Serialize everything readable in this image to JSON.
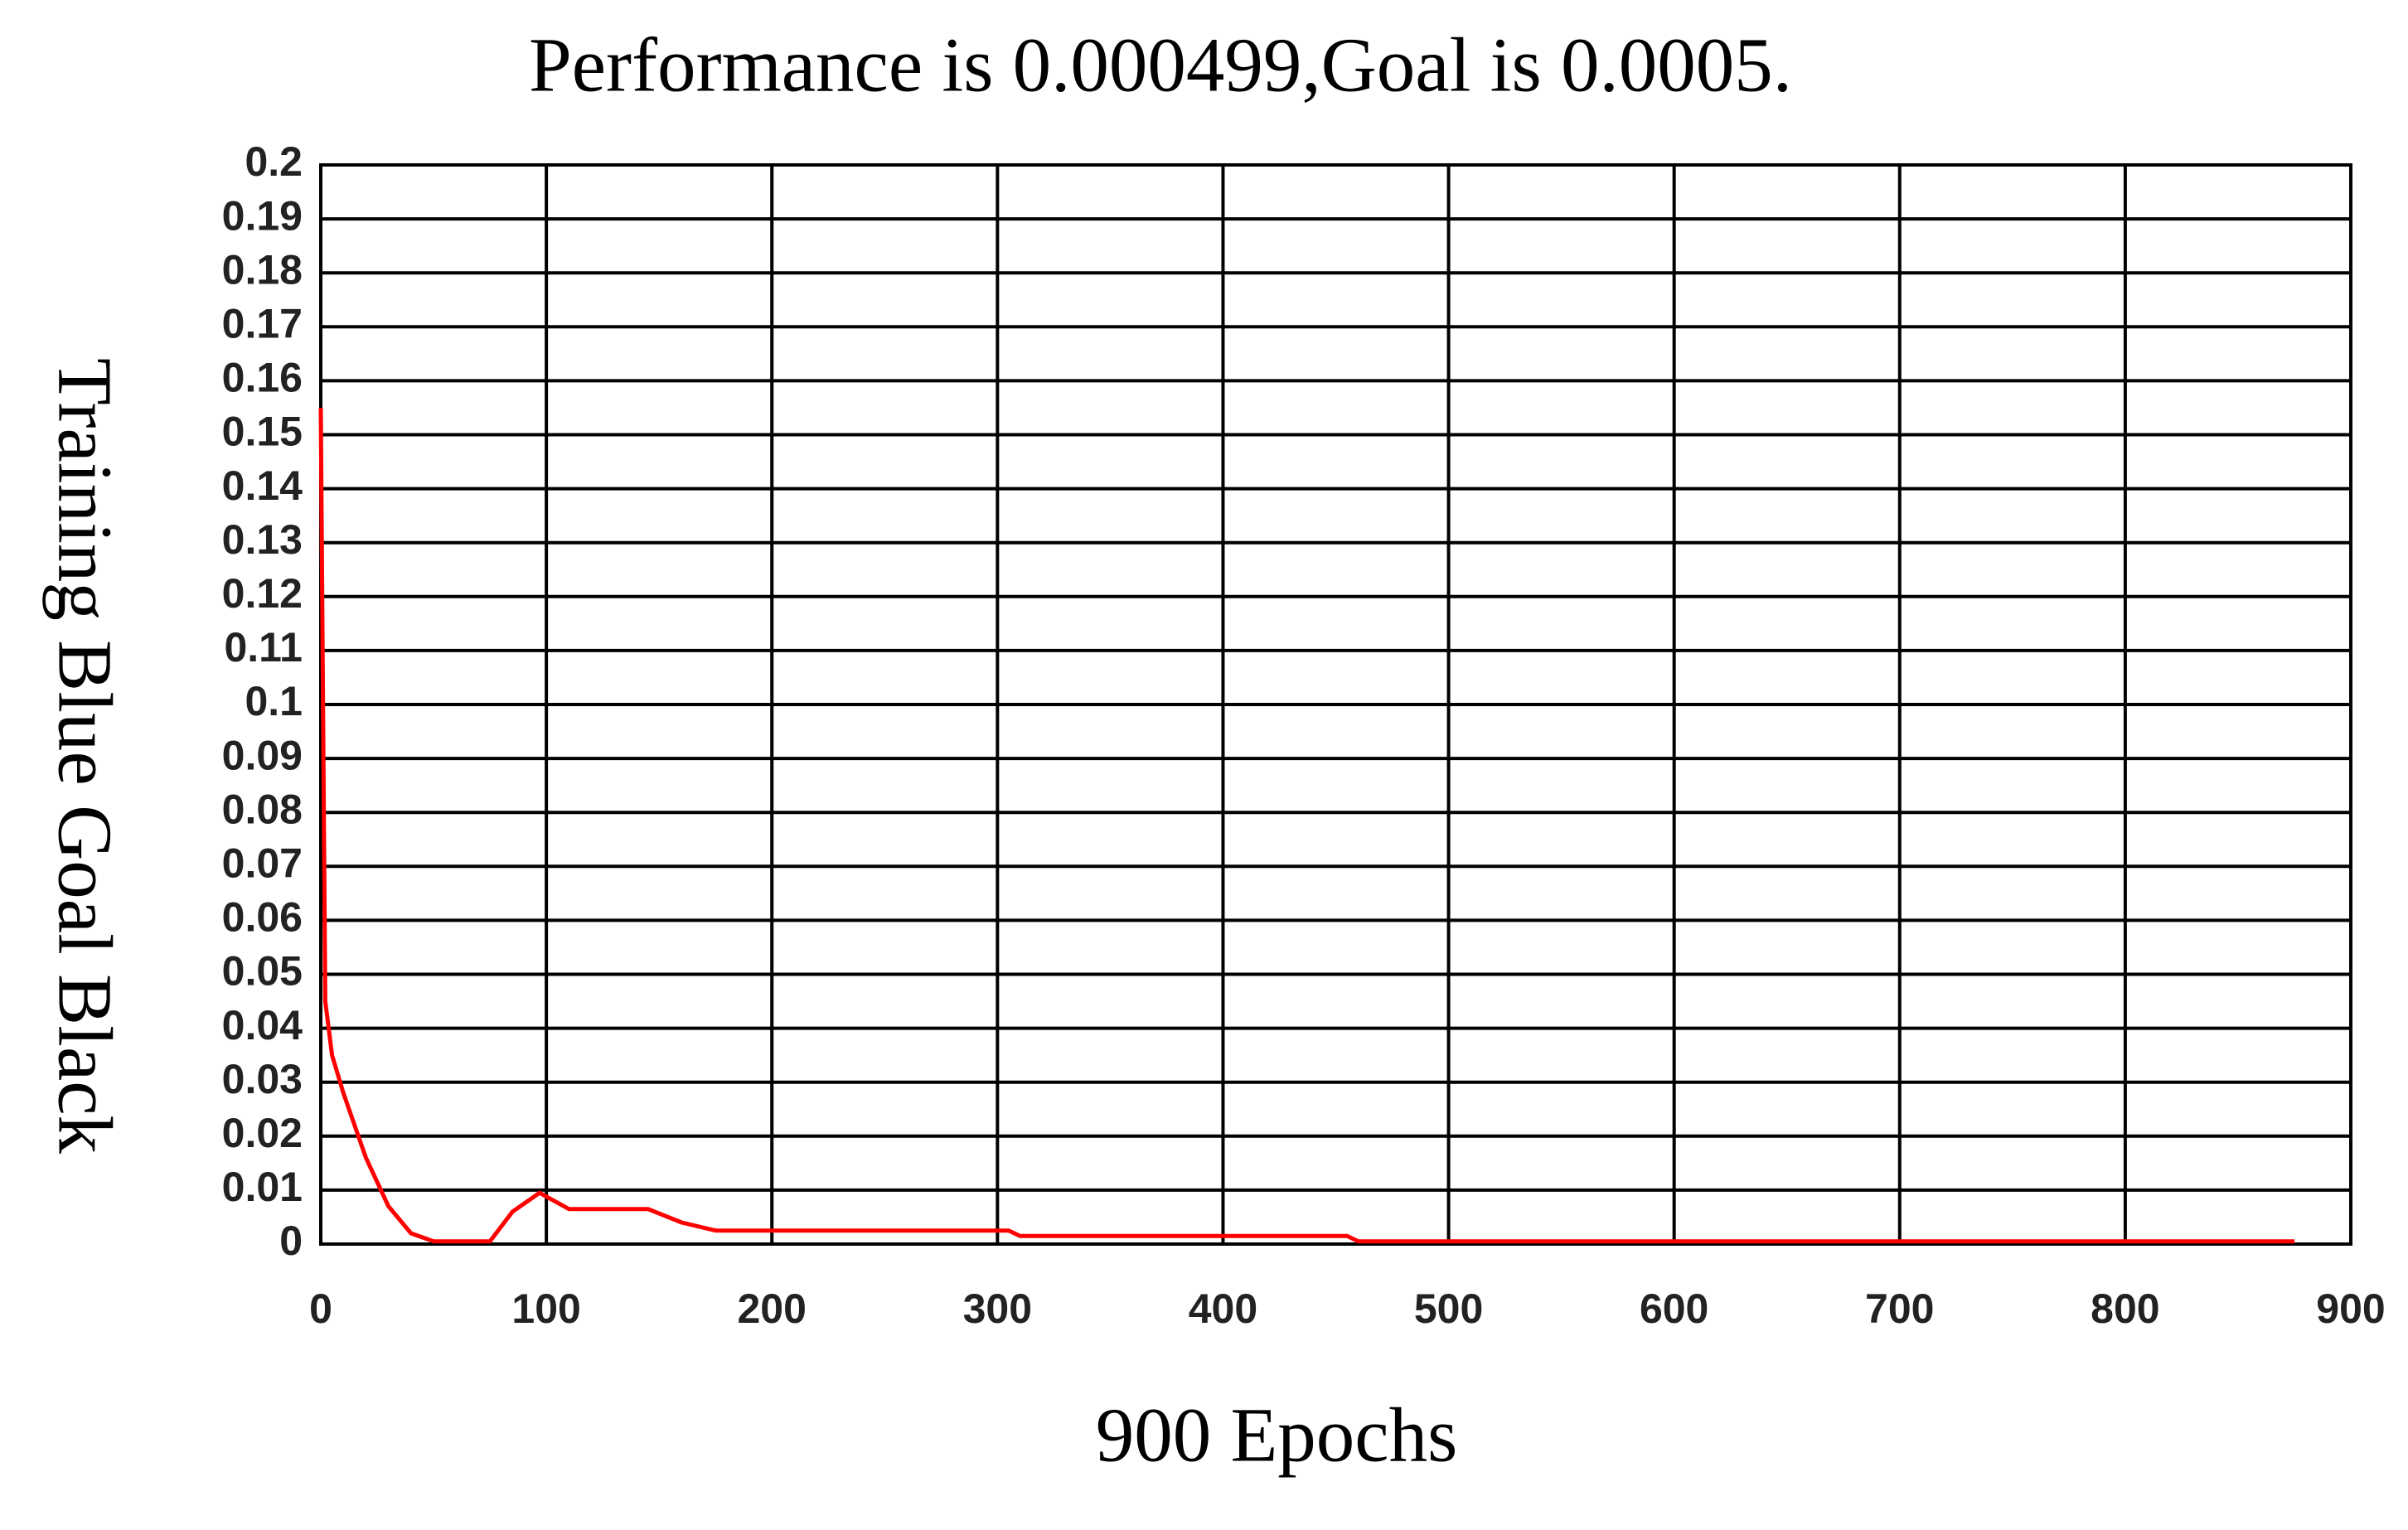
{
  "chart_data": {
    "type": "line",
    "title": "Performance is 0.000499,Goal is 0.0005.",
    "xlabel": "900 Epochs",
    "ylabel": "Training Blue Goal Black",
    "x": [
      0,
      2,
      5,
      10,
      20,
      30,
      40,
      50,
      75,
      85,
      97,
      110,
      145,
      160,
      175,
      305,
      310,
      455,
      460,
      875
    ],
    "series": [
      {
        "color": "#ff0000",
        "values": [
          0.155,
          0.045,
          0.035,
          0.028,
          0.016,
          0.007,
          0.002,
          0.0005,
          0.0005,
          0.006,
          0.0095,
          0.0065,
          0.0065,
          0.004,
          0.0025,
          0.0025,
          0.0015,
          0.0015,
          0.0005,
          0.0005
        ]
      }
    ],
    "xlim": [
      0,
      900
    ],
    "xticks": [
      0,
      100,
      200,
      300,
      400,
      500,
      600,
      700,
      800,
      900
    ],
    "ylim": [
      0,
      0.2
    ],
    "yticks": [
      0,
      0.01,
      0.02,
      0.03,
      0.04,
      0.05,
      0.06,
      0.07,
      0.08,
      0.09,
      0.1,
      0.11,
      0.12,
      0.13,
      0.14,
      0.15,
      0.16,
      0.17,
      0.18,
      0.19,
      0.2
    ],
    "grid": true
  }
}
